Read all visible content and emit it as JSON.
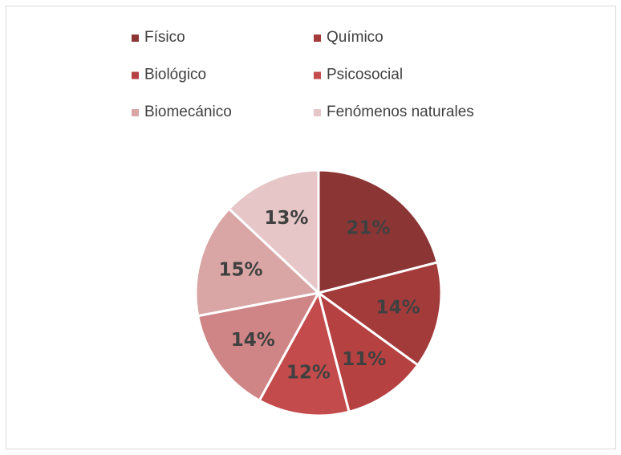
{
  "chart_data": {
    "type": "pie",
    "categories": [
      "Físico",
      "Químico",
      "Biológico",
      "Psicosocial",
      null,
      "Biomecánico",
      "Fenómenos naturales"
    ],
    "values": [
      21,
      14,
      11,
      12,
      14,
      15,
      13
    ],
    "value_labels": [
      "21%",
      "14%",
      "11%",
      "12%",
      "14%",
      "15%",
      "13%"
    ],
    "colors": [
      "#8c3535",
      "#a33b3b",
      "#b54141",
      "#c44b4b",
      "#cf8585",
      "#d9a5a5",
      "#e6c6c6"
    ],
    "legend": "top"
  }
}
